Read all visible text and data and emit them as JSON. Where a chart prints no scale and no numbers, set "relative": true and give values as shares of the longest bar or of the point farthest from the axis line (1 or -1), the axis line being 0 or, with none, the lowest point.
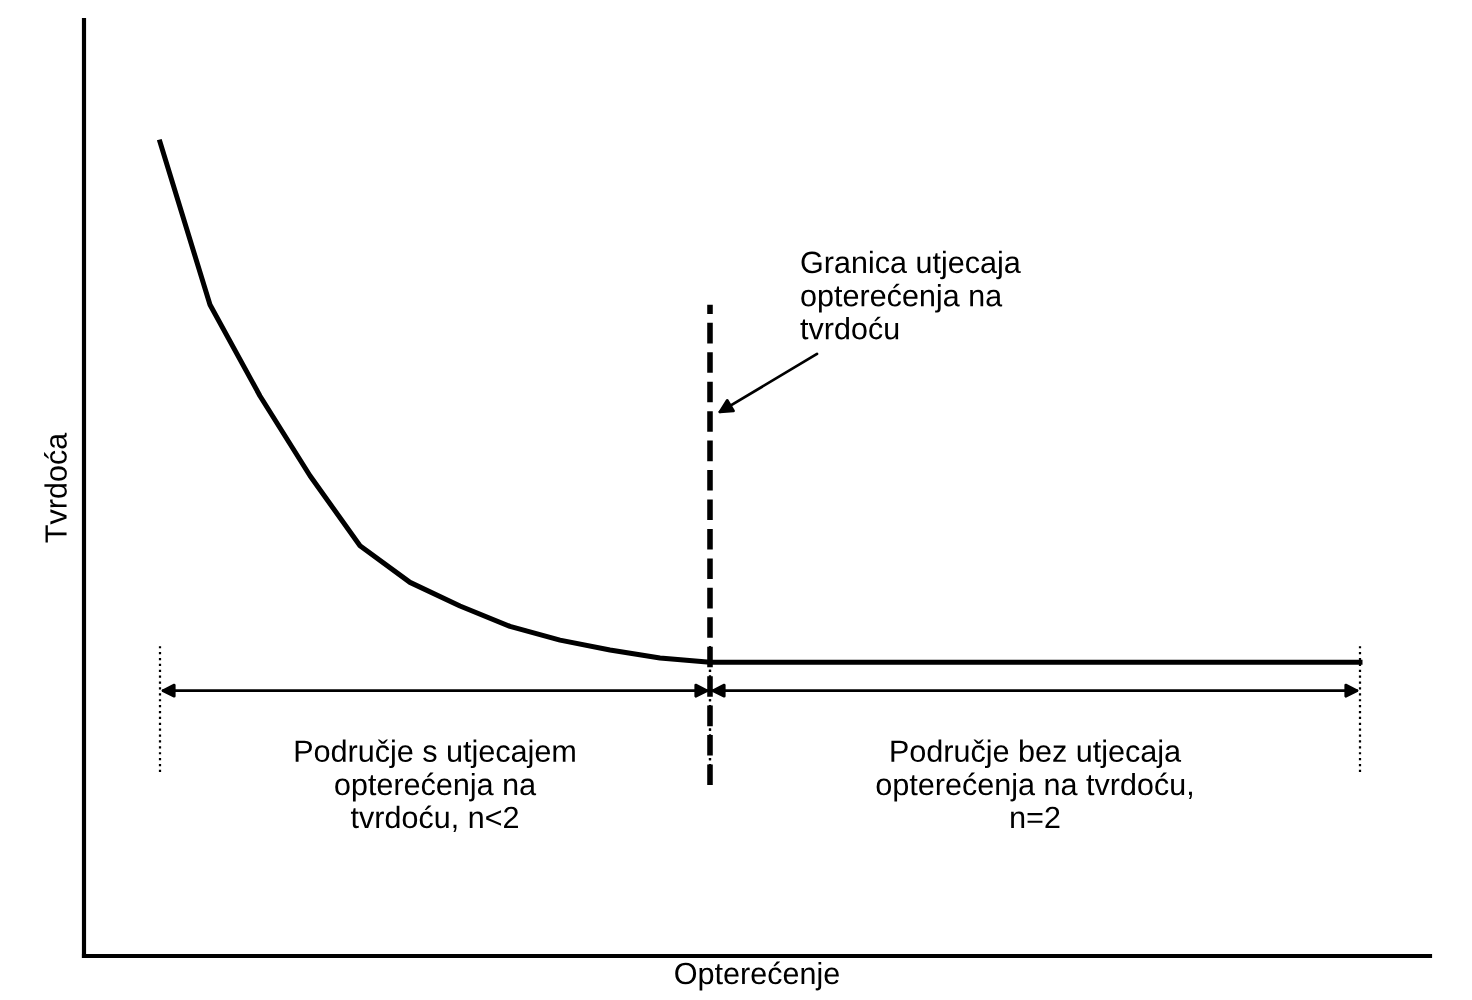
{
  "chart_data": {
    "type": "line",
    "xlabel": "Opterećenje",
    "ylabel": "Tvrdoća",
    "relative": true,
    "categories": [
      null,
      null,
      null,
      null,
      null,
      null,
      null,
      null,
      null,
      null,
      null,
      null,
      null,
      null,
      null,
      null,
      null,
      null,
      null,
      null,
      null,
      null,
      null,
      null,
      null
    ],
    "series": [
      {
        "color": "#000000",
        "values": [
          1.0,
          0.8,
          0.688,
          0.59,
          0.504,
          0.459,
          0.43,
          0.405,
          0.388,
          0.376,
          0.366,
          0.361,
          0.361,
          0.361,
          0.361,
          0.361,
          0.361,
          0.361,
          0.361,
          0.361,
          0.361,
          0.361,
          0.361,
          0.361,
          0.361
        ]
      }
    ],
    "annotations": [
      "Granica utjecaja\nopterećenja na\ntvrdoću",
      "Područje s utjecajem\nopterećenja na\ntvrdoću, n<2",
      "Područje bez utjecaja\nopterećenja na tvrdoću,\nn=2"
    ],
    "legend": false,
    "marker": "none",
    "line_style": "solid"
  }
}
